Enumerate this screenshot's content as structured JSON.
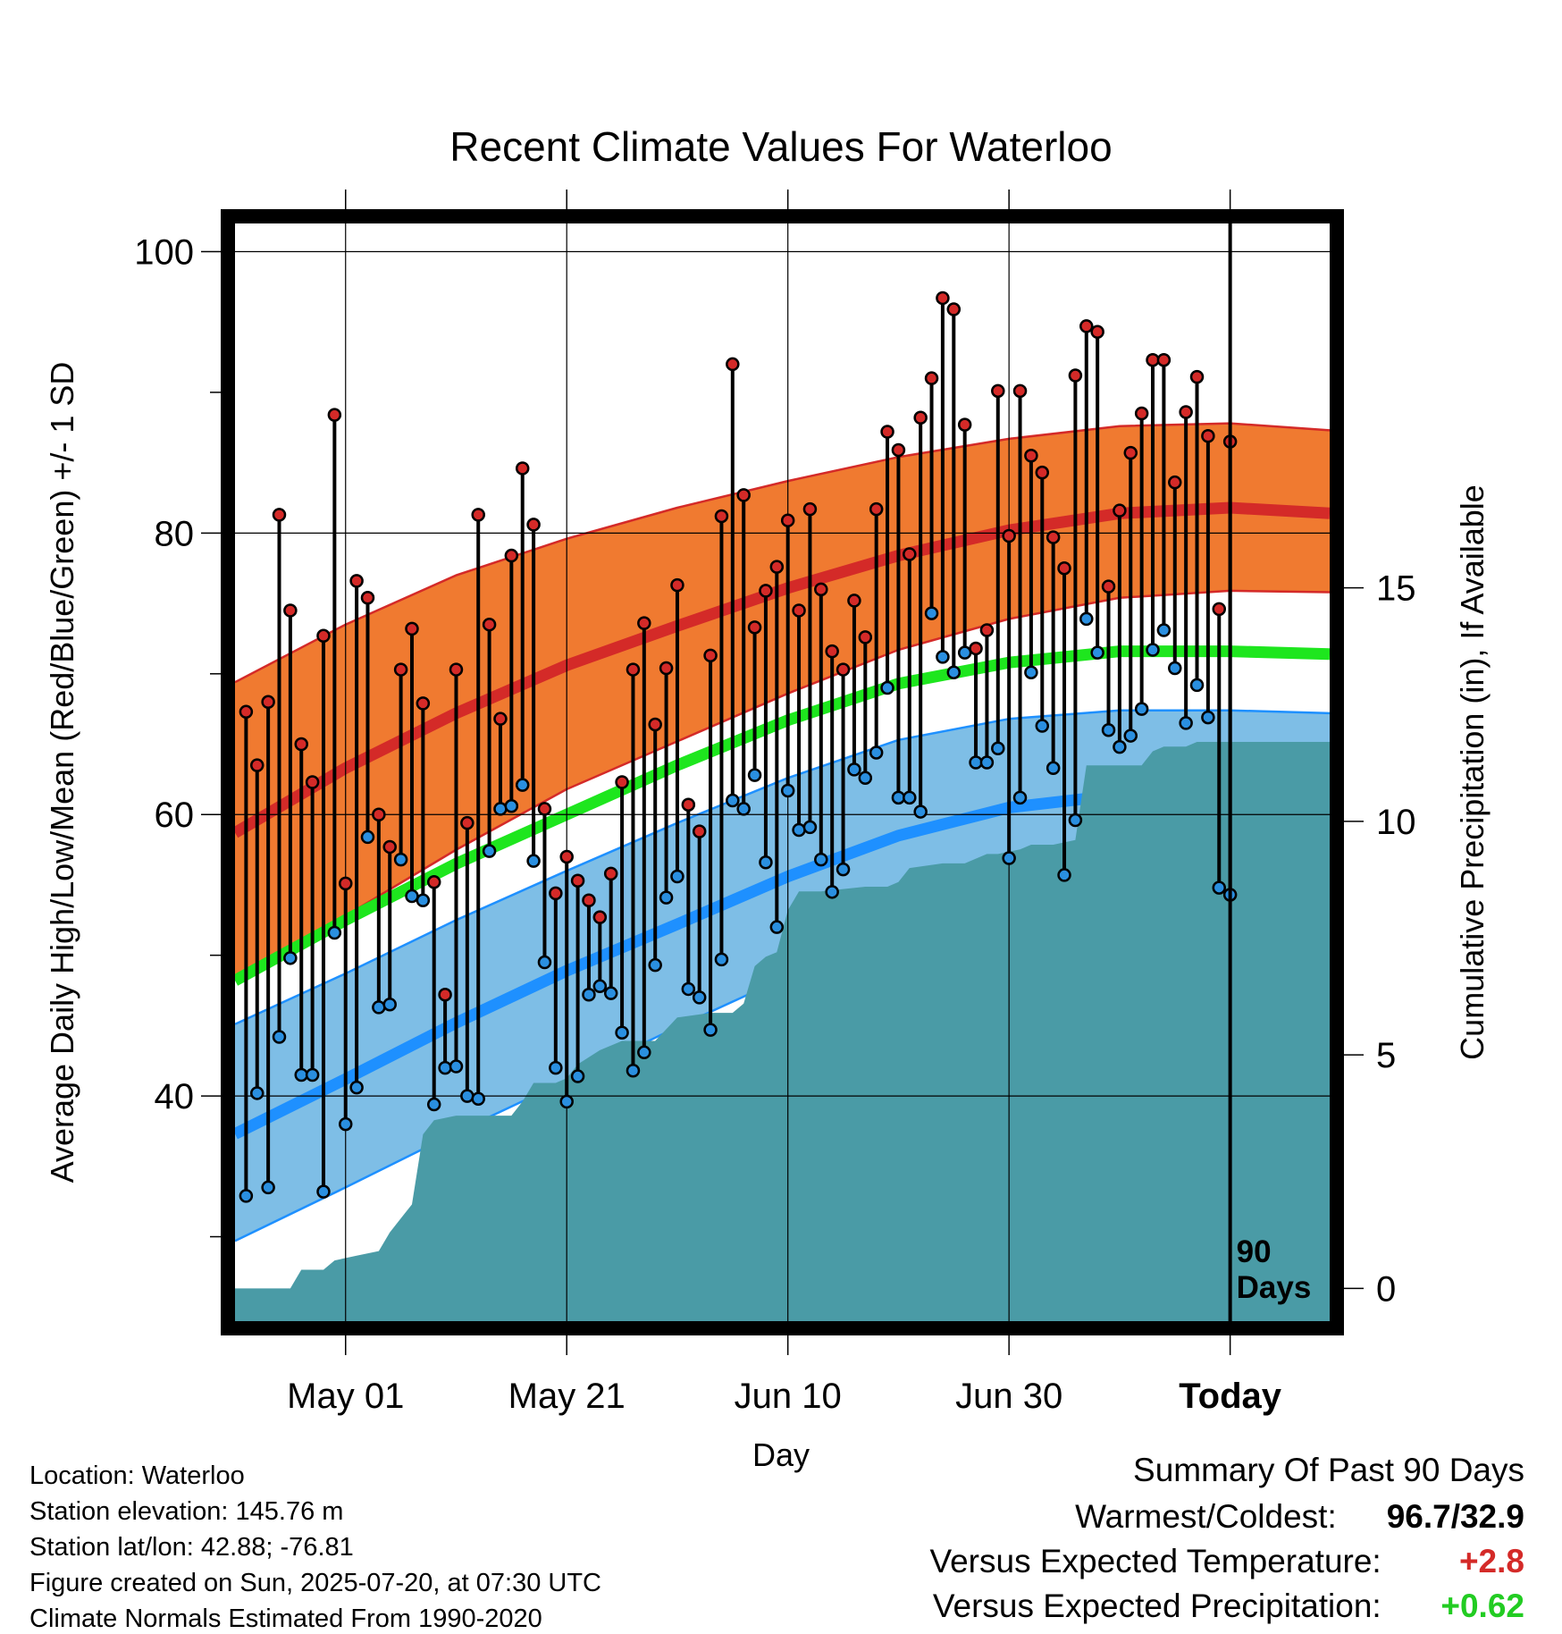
{
  "title": "Recent Climate Values For Waterloo",
  "y_label": "Average Daily High/Low/Mean (Red/Blue/Green) +/- 1 SD",
  "y2_label": "Cumulative Precipitation (in), If Available",
  "x_label": "Day",
  "x_ticks": [
    "May 01",
    "May 21",
    "Jun 10",
    "Jun 30",
    "Today"
  ],
  "y_ticks": [
    "40",
    "60",
    "80",
    "100"
  ],
  "y2_ticks": [
    "0",
    "5",
    "10",
    "15"
  ],
  "marker_label": "90\nDays",
  "info": [
    "Location: Waterloo",
    "Station elevation: 145.76 m",
    "Station lat/lon: 42.88; -76.81",
    "Figure created on Sun, 2025-07-20, at 07:30 UTC",
    "Climate Normals Estimated From 1990-2020"
  ],
  "summary": {
    "heading": "Summary Of Past 90 Days",
    "warmest_label": "Warmest/Coldest:",
    "warmest_value": "96.7/32.9",
    "temp_label": "Versus Expected Temperature:",
    "temp_value": "+2.8",
    "precip_label": "Versus Expected Precipitation:",
    "precip_value": "+0.62"
  },
  "colors": {
    "high_band": "#f07a30",
    "high_normal": "#d42a28",
    "low_band": "#7ebee6",
    "low_normal": "#1e90ff",
    "mean_normal": "#1ee61e",
    "precip": "#4a9ba6",
    "high_dot": "#d42a28",
    "low_dot": "#2a8fe0",
    "temp_delta": "#d42a28",
    "precip_delta": "#22cc22"
  },
  "chart_data": {
    "type": "line",
    "x_unit": "day offset relative to today (0 = Today, 2025-07-20)",
    "xlim": [
      -90,
      9
    ],
    "ylim": [
      24,
      102
    ],
    "y2lim": [
      -0.7,
      22.8
    ],
    "normals": {
      "x": [
        -90,
        -80,
        -70,
        -60,
        -50,
        -40,
        -30,
        -20,
        -10,
        0,
        9
      ],
      "high_upper": [
        69.4,
        73.5,
        77.0,
        79.6,
        81.8,
        83.7,
        85.4,
        86.7,
        87.6,
        87.8,
        87.3
      ],
      "high_mean": [
        58.7,
        63.3,
        67.2,
        70.6,
        73.4,
        76.1,
        78.4,
        80.2,
        81.4,
        81.8,
        81.4
      ],
      "high_lower": [
        48.4,
        52.8,
        57.5,
        61.8,
        65.2,
        68.6,
        71.7,
        73.9,
        75.4,
        75.9,
        75.8
      ],
      "mean": [
        48.2,
        52.5,
        56.5,
        60.0,
        63.5,
        66.7,
        69.3,
        70.8,
        71.6,
        71.6,
        71.4
      ],
      "low_upper": [
        45.1,
        48.7,
        52.5,
        56.0,
        59.4,
        62.6,
        65.3,
        66.8,
        67.4,
        67.4,
        67.2
      ],
      "low_mean": [
        37.3,
        41.2,
        45.2,
        48.9,
        52.2,
        55.6,
        58.5,
        60.5,
        61.4,
        61.6,
        61.4
      ],
      "low_lower": [
        29.7,
        33.5,
        37.4,
        41.1,
        44.9,
        48.5,
        51.5,
        54.0,
        55.5,
        55.9,
        55.8
      ]
    },
    "daily": {
      "x": [
        -89,
        -88,
        -87,
        -86,
        -85,
        -84,
        -83,
        -82,
        -81,
        -80,
        -79,
        -78,
        -77,
        -76,
        -75,
        -74,
        -73,
        -72,
        -71,
        -70,
        -69,
        -68,
        -67,
        -66,
        -65,
        -64,
        -63,
        -62,
        -61,
        -60,
        -59,
        -58,
        -57,
        -56,
        -55,
        -54,
        -53,
        -52,
        -51,
        -50,
        -49,
        -48,
        -47,
        -46,
        -45,
        -44,
        -43,
        -42,
        -41,
        -40,
        -39,
        -38,
        -37,
        -36,
        -35,
        -34,
        -33,
        -32,
        -31,
        -30,
        -29,
        -28,
        -27,
        -26,
        -25,
        -24,
        -23,
        -22,
        -21,
        -20,
        -19,
        -18,
        -17,
        -16,
        -15,
        -14,
        -13,
        -12,
        -11,
        -10,
        -9,
        -8,
        -7,
        -6,
        -5,
        -4,
        -3,
        -2,
        -1,
        0
      ],
      "high": [
        67.3,
        63.5,
        68.0,
        81.3,
        74.5,
        65.0,
        62.3,
        72.7,
        88.4,
        55.1,
        76.6,
        75.4,
        60.0,
        57.7,
        70.3,
        73.2,
        67.9,
        55.2,
        47.2,
        70.3,
        59.4,
        81.3,
        73.5,
        66.8,
        78.4,
        84.6,
        80.6,
        60.4,
        54.4,
        57.0,
        55.3,
        53.9,
        52.7,
        55.8,
        62.3,
        70.3,
        73.6,
        66.4,
        70.4,
        76.3,
        60.7,
        58.8,
        71.3,
        81.2,
        92.0,
        82.7,
        73.3,
        75.9,
        77.6,
        80.9,
        74.5,
        81.7,
        76.0,
        71.6,
        70.3,
        75.2,
        72.6,
        81.7,
        87.2,
        85.9,
        78.5,
        88.2,
        91.0,
        96.7,
        95.9,
        87.7,
        71.8,
        73.1,
        90.1,
        79.8,
        90.1,
        85.5,
        84.3,
        79.7,
        77.5,
        91.2,
        94.7,
        94.3,
        76.2,
        81.6,
        85.7,
        88.5,
        92.3,
        92.3,
        83.6,
        88.6,
        91.1,
        86.9,
        74.6,
        86.5
      ],
      "low": [
        32.9,
        40.2,
        33.5,
        44.2,
        49.8,
        41.5,
        41.5,
        33.2,
        51.6,
        38.0,
        40.6,
        58.4,
        46.3,
        46.5,
        56.8,
        54.2,
        53.9,
        39.4,
        42.0,
        42.1,
        40.0,
        39.8,
        57.4,
        60.4,
        60.6,
        62.1,
        56.7,
        49.5,
        42.0,
        39.6,
        41.4,
        47.2,
        47.8,
        47.3,
        44.5,
        41.8,
        43.1,
        49.3,
        54.1,
        55.6,
        47.6,
        47.0,
        44.7,
        49.7,
        61.0,
        60.4,
        62.8,
        56.6,
        52.0,
        61.7,
        58.9,
        59.1,
        56.8,
        54.5,
        56.1,
        63.2,
        62.6,
        64.4,
        69.0,
        61.2,
        61.2,
        60.2,
        74.3,
        71.2,
        70.1,
        71.5,
        63.7,
        63.7,
        64.7,
        56.9,
        61.2,
        70.1,
        66.3,
        63.3,
        55.7,
        59.6,
        73.9,
        71.5,
        66.0,
        64.8,
        65.6,
        67.5,
        71.7,
        73.1,
        70.4,
        66.5,
        69.2,
        66.9,
        54.8,
        54.3
      ]
    },
    "precipitation": {
      "x": [
        -90,
        -85,
        -84,
        -82,
        -81,
        -79,
        -77,
        -76,
        -75,
        -74,
        -73,
        -72,
        -70,
        -65,
        -64,
        -63,
        -61,
        -60,
        -59,
        -57,
        -55,
        -52,
        -50,
        -47,
        -45,
        -44,
        -43,
        -42,
        -41,
        -40,
        -39,
        -38,
        -37,
        -33,
        -31,
        -30,
        -29,
        -26,
        -25,
        -24,
        -22,
        -21,
        -19,
        -18,
        -16,
        -14,
        -13,
        -12,
        -10,
        -8,
        -7,
        -6,
        -4,
        -3,
        0,
        9
      ],
      "cumulative": [
        0.0,
        0.0,
        0.4,
        0.4,
        0.6,
        0.7,
        0.8,
        1.2,
        1.5,
        1.8,
        3.3,
        3.6,
        3.7,
        3.7,
        4.0,
        4.4,
        4.4,
        4.5,
        4.8,
        5.1,
        5.3,
        5.3,
        5.8,
        5.9,
        5.9,
        6.1,
        6.9,
        7.1,
        7.2,
        8.1,
        8.5,
        8.5,
        8.5,
        8.6,
        8.6,
        8.7,
        9.0,
        9.1,
        9.1,
        9.1,
        9.3,
        9.3,
        9.4,
        9.5,
        9.5,
        9.6,
        11.2,
        11.2,
        11.2,
        11.2,
        11.5,
        11.6,
        11.6,
        11.7,
        11.7,
        11.7
      ]
    },
    "today_marker_x": 0
  }
}
